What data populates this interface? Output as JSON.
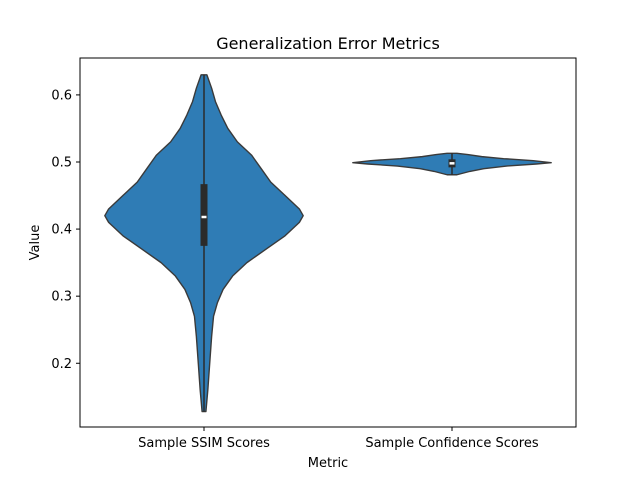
{
  "chart_data": {
    "type": "violin",
    "title": "Generalization Error Metrics",
    "xlabel": "Metric",
    "ylabel": "Value",
    "ylim": [
      0.105,
      0.655
    ],
    "yticks": [
      "0.2",
      "0.3",
      "0.4",
      "0.5",
      "0.6"
    ],
    "grid": false,
    "colors": {
      "fill": "#2f7cb5",
      "edge": "#3a3a3a",
      "box": "#2b2b2b",
      "median": "#ffffff"
    },
    "violins": [
      {
        "category": "Sample SSIM Scores",
        "min": 0.128,
        "max": 0.63,
        "q1": 0.375,
        "median": 0.418,
        "q3": 0.467,
        "profile": [
          [
            0.128,
            0.002
          ],
          [
            0.16,
            0.004
          ],
          [
            0.2,
            0.006
          ],
          [
            0.24,
            0.008
          ],
          [
            0.27,
            0.01
          ],
          [
            0.29,
            0.014
          ],
          [
            0.31,
            0.02
          ],
          [
            0.33,
            0.03
          ],
          [
            0.35,
            0.045
          ],
          [
            0.37,
            0.065
          ],
          [
            0.39,
            0.085
          ],
          [
            0.41,
            0.1
          ],
          [
            0.42,
            0.104
          ],
          [
            0.43,
            0.1
          ],
          [
            0.45,
            0.085
          ],
          [
            0.47,
            0.07
          ],
          [
            0.49,
            0.06
          ],
          [
            0.51,
            0.05
          ],
          [
            0.53,
            0.035
          ],
          [
            0.55,
            0.025
          ],
          [
            0.57,
            0.018
          ],
          [
            0.59,
            0.012
          ],
          [
            0.61,
            0.008
          ],
          [
            0.63,
            0.003
          ]
        ]
      },
      {
        "category": "Sample Confidence Scores",
        "min": 0.481,
        "max": 0.513,
        "q1": 0.492,
        "median": 0.498,
        "q3": 0.504,
        "profile": [
          [
            0.481,
            0.05
          ],
          [
            0.486,
            0.18
          ],
          [
            0.49,
            0.32
          ],
          [
            0.494,
            0.55
          ],
          [
            0.497,
            0.85
          ],
          [
            0.499,
            1.0
          ],
          [
            0.502,
            0.82
          ],
          [
            0.505,
            0.52
          ],
          [
            0.508,
            0.3
          ],
          [
            0.511,
            0.16
          ],
          [
            0.513,
            0.05
          ]
        ]
      }
    ]
  }
}
